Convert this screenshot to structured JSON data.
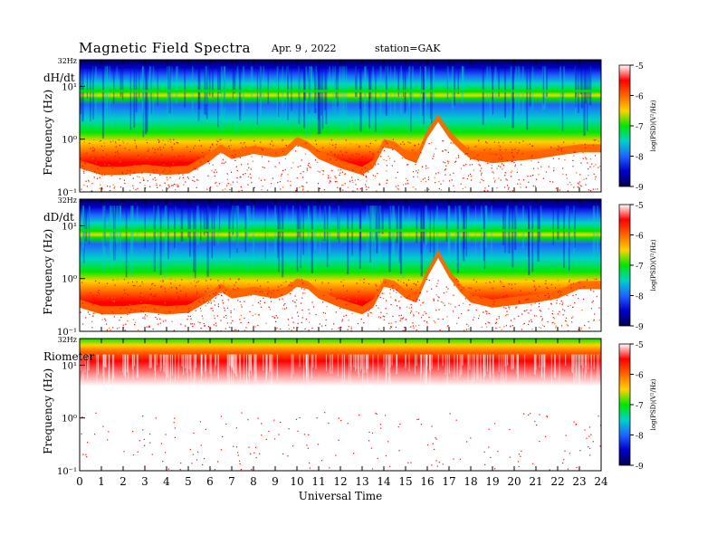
{
  "header": {
    "title": "Magnetic  Field  Spectra",
    "date": "Apr. 9  , 2022",
    "station": "station=GAK"
  },
  "chart_data": [
    {
      "type": "heatmap",
      "panel_label": "dH/dt",
      "ylabel": "Frequency  (Hz)",
      "y_scale": "log",
      "y_tick_labels": [
        "32Hz",
        "10¹",
        "10⁰",
        "10⁻¹"
      ],
      "x_tick_labels": [
        "0",
        "1",
        "2",
        "3",
        "4",
        "5",
        "6",
        "7",
        "8",
        "9",
        "10",
        "11",
        "12",
        "13",
        "14",
        "15",
        "16",
        "17",
        "18",
        "19",
        "20",
        "21",
        "22",
        "23",
        "24"
      ],
      "colorbar_label": "log(PSD)(V²/Hz)",
      "colorbar_ticks": [
        "-5",
        "-6",
        "-7",
        "-8",
        "-9"
      ],
      "noise_floor_trace": [
        [
          0,
          0.4
        ],
        [
          1,
          0.3
        ],
        [
          2,
          0.3
        ],
        [
          3,
          0.33
        ],
        [
          4,
          0.3
        ],
        [
          5,
          0.32
        ],
        [
          6,
          0.55
        ],
        [
          6.5,
          0.8
        ],
        [
          7,
          0.6
        ],
        [
          8,
          0.75
        ],
        [
          9,
          0.65
        ],
        [
          9.5,
          0.7
        ],
        [
          10,
          1.1
        ],
        [
          10.5,
          0.9
        ],
        [
          11,
          0.6
        ],
        [
          12,
          0.4
        ],
        [
          13,
          0.3
        ],
        [
          13.5,
          0.4
        ],
        [
          14,
          1.0
        ],
        [
          14.5,
          0.9
        ],
        [
          15,
          0.6
        ],
        [
          15.5,
          0.5
        ],
        [
          16,
          1.5
        ],
        [
          16.5,
          3.0
        ],
        [
          17,
          1.5
        ],
        [
          17.5,
          0.9
        ],
        [
          18,
          0.6
        ],
        [
          19,
          0.5
        ],
        [
          20,
          0.55
        ],
        [
          21,
          0.6
        ],
        [
          22,
          0.7
        ],
        [
          23,
          0.8
        ],
        [
          24,
          0.8
        ]
      ]
    },
    {
      "type": "heatmap",
      "panel_label": "dD/dt",
      "ylabel": "Frequency  (Hz)",
      "y_scale": "log",
      "y_tick_labels": [
        "32Hz",
        "10¹",
        "10⁰",
        "10⁻¹"
      ],
      "x_tick_labels": [
        "0",
        "1",
        "2",
        "3",
        "4",
        "5",
        "6",
        "7",
        "8",
        "9",
        "10",
        "11",
        "12",
        "13",
        "14",
        "15",
        "16",
        "17",
        "18",
        "19",
        "20",
        "21",
        "22",
        "23",
        "24"
      ],
      "colorbar_label": "log(PSD)(V²/Hz)",
      "colorbar_ticks": [
        "-5",
        "-6",
        "-7",
        "-8",
        "-9"
      ],
      "noise_floor_trace": [
        [
          0,
          0.4
        ],
        [
          1,
          0.3
        ],
        [
          2,
          0.3
        ],
        [
          3,
          0.33
        ],
        [
          4,
          0.3
        ],
        [
          5,
          0.32
        ],
        [
          6,
          0.55
        ],
        [
          6.5,
          0.8
        ],
        [
          7,
          0.6
        ],
        [
          8,
          0.7
        ],
        [
          9,
          0.6
        ],
        [
          9.5,
          0.7
        ],
        [
          10,
          1.0
        ],
        [
          10.5,
          0.9
        ],
        [
          11,
          0.6
        ],
        [
          12,
          0.4
        ],
        [
          13,
          0.3
        ],
        [
          13.5,
          0.4
        ],
        [
          14,
          1.0
        ],
        [
          14.5,
          0.9
        ],
        [
          15,
          0.6
        ],
        [
          15.5,
          0.5
        ],
        [
          16,
          1.5
        ],
        [
          16.5,
          3.5
        ],
        [
          17,
          1.5
        ],
        [
          17.5,
          0.8
        ],
        [
          18,
          0.5
        ],
        [
          19,
          0.4
        ],
        [
          20,
          0.45
        ],
        [
          21,
          0.5
        ],
        [
          22,
          0.6
        ],
        [
          23,
          0.9
        ],
        [
          24,
          0.9
        ]
      ]
    },
    {
      "type": "heatmap",
      "panel_label": "Riometer",
      "ylabel": "Frequency  (Hz)",
      "y_scale": "log",
      "y_tick_labels": [
        "32Hz",
        "10¹",
        "10⁰",
        "10⁻¹"
      ],
      "x_tick_labels": [
        "0",
        "1",
        "2",
        "3",
        "4",
        "5",
        "6",
        "7",
        "8",
        "9",
        "10",
        "11",
        "12",
        "13",
        "14",
        "15",
        "16",
        "17",
        "18",
        "19",
        "20",
        "21",
        "22",
        "23",
        "24"
      ],
      "xlabel": "Universal  Time",
      "colorbar_label": "log(PSD)(V²/Hz)",
      "colorbar_ticks": [
        "-5",
        "-6",
        "-7",
        "-8",
        "-9"
      ],
      "noise_floor_trace": [
        [
          0,
          12
        ],
        [
          24,
          12
        ]
      ]
    }
  ],
  "colors": {
    "spectrum": [
      "#ff0000",
      "#ff6600",
      "#ffd200",
      "#00e600",
      "#00d2c8",
      "#1e64ff",
      "#0000c8",
      "#000050"
    ]
  }
}
